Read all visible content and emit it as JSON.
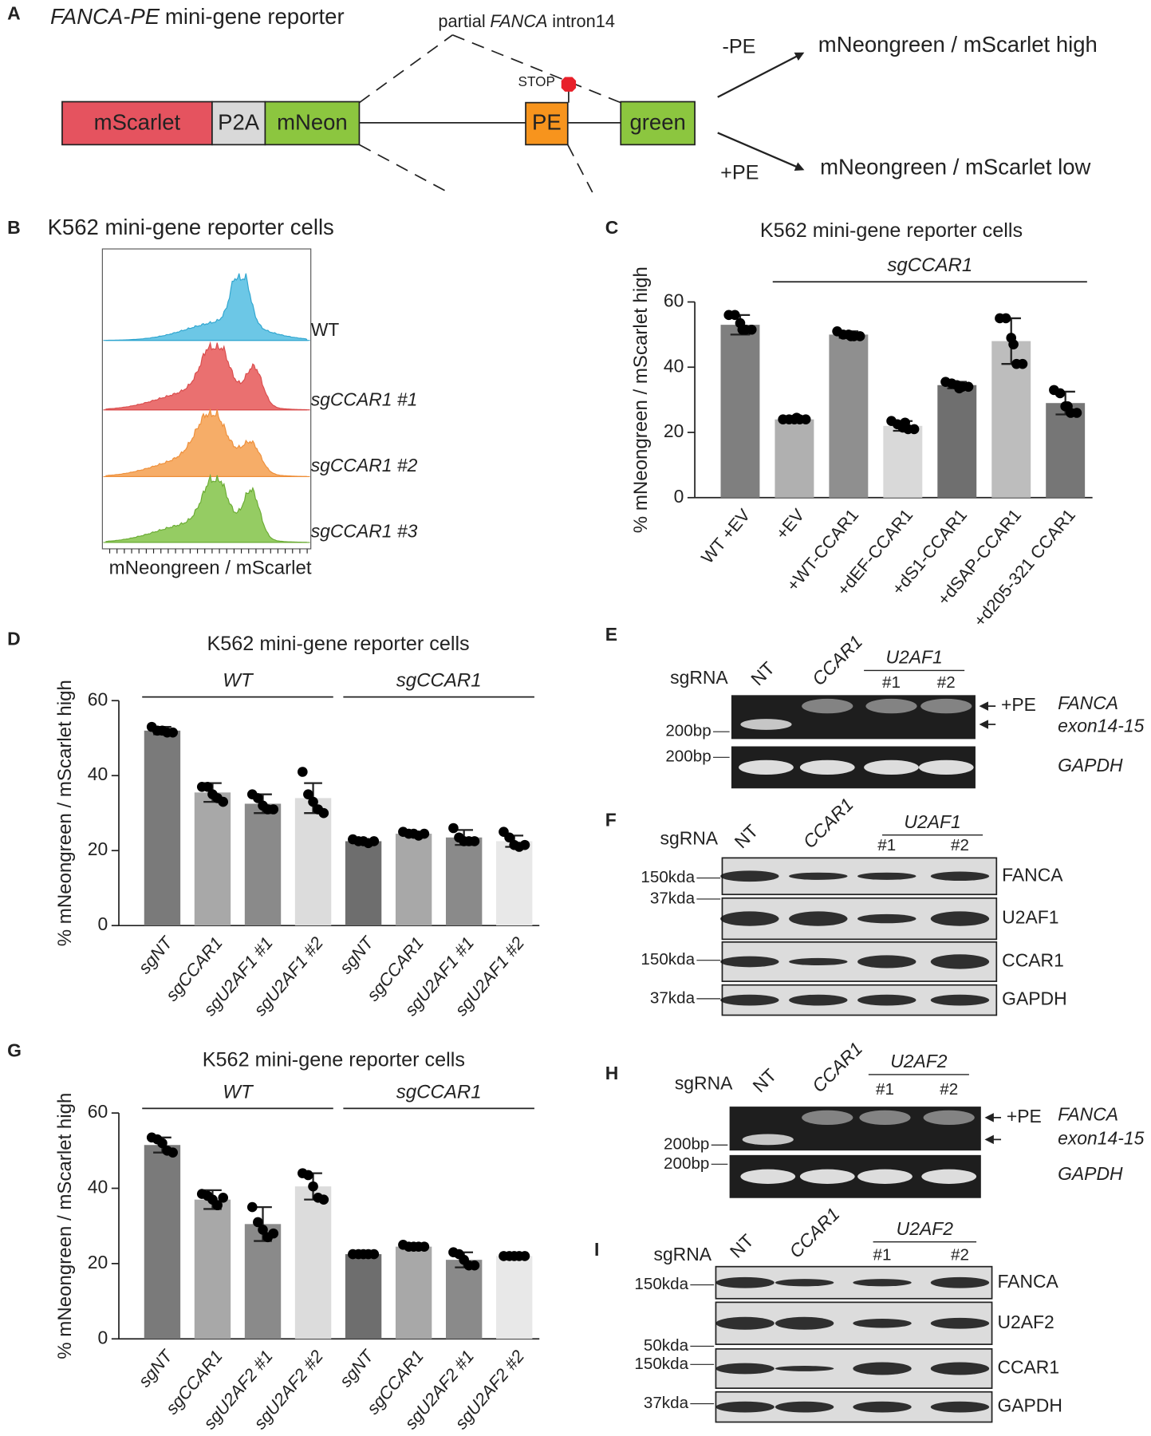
{
  "panel_a": {
    "letter": "A",
    "title_gene": "FANCA-PE",
    "title": "mini-gene reporter",
    "intron_prefix": "partial",
    "intron_gene": "FANCA",
    "intron_suffix": "intron14",
    "boxes": [
      "mScarlet",
      "P2A",
      "mNeon",
      "PE",
      "green"
    ],
    "stop": "STOP",
    "outcomes": [
      {
        "condition": "-PE",
        "result": "mNeongreen / mScarlet high"
      },
      {
        "condition": "+PE",
        "result": "mNeongreen / mScarlet low"
      }
    ]
  },
  "panel_b": {
    "letter": "B",
    "title": "K562 mini-gene reporter cells",
    "samples": [
      "WT",
      "sgCCAR1 #1",
      "sgCCAR1 #2",
      "sgCCAR1 #3"
    ],
    "x_label": "mNeongreen / mScarlet"
  },
  "chart_data": [
    {
      "type": "bar",
      "panel": "C",
      "title": "K562 mini-gene reporter cells",
      "y_label": "% mNeongreen / mScarlet high",
      "categories": [
        "WT +EV",
        "+EV",
        "+WT-CCAR1",
        "+dEF-CCAR1",
        "+dS1-CCAR1",
        "+dSAP-CCAR1",
        "+d205-321 CCAR1"
      ],
      "values": [
        53,
        24,
        50,
        22,
        34.5,
        48,
        29
      ],
      "errors": [
        3,
        0.5,
        1,
        1.5,
        1,
        7,
        3.5
      ],
      "points": [
        [
          56,
          56,
          53.5,
          51.5,
          51.5,
          51.5
        ],
        [
          24,
          24,
          24,
          24,
          24,
          24.5
        ],
        [
          51,
          50,
          50,
          49.5,
          49.5,
          49.5
        ],
        [
          23.5,
          22.5,
          21.5,
          21,
          21,
          23
        ],
        [
          35.5,
          35,
          34.5,
          34,
          34,
          33.5
        ],
        [
          55,
          55,
          49,
          41,
          41,
          47
        ],
        [
          33,
          32,
          28,
          26,
          26,
          28
        ]
      ],
      "colors": [
        "#7f7f7f",
        "#b0b0b0",
        "#8f8f8f",
        "#d9d9d9",
        "#6f6f6f",
        "#bdbdbd",
        "#767676"
      ],
      "groups": [
        {
          "label": "sgCCAR1",
          "first": 1,
          "last": 6
        }
      ],
      "ylim": [
        0,
        60
      ],
      "yticks": [
        0,
        20,
        40,
        60
      ]
    },
    {
      "type": "bar",
      "panel": "D",
      "title": "K562 mini-gene reporter cells",
      "y_label": "% mNeongreen / mScarlet high",
      "categories": [
        "sgNT",
        "sgCCAR1",
        "sgU2AF1 #1",
        "sgU2AF1 #2",
        "sgNT",
        "sgCCAR1",
        "sgU2AF1 #1",
        "sgU2AF1 #2"
      ],
      "values": [
        52,
        35.5,
        32.5,
        34,
        22.5,
        24.5,
        23.5,
        22.5
      ],
      "errors": [
        1,
        2.5,
        2.5,
        4,
        0.5,
        0.5,
        2,
        1.5
      ],
      "points": [
        [
          53,
          52,
          52,
          51.5,
          51.5
        ],
        [
          37,
          37,
          35,
          34,
          33
        ],
        [
          35,
          34,
          32,
          31,
          31
        ],
        [
          41,
          35,
          33,
          31,
          30
        ],
        [
          23,
          22.5,
          22.5,
          22,
          22.5
        ],
        [
          25,
          24.5,
          24.5,
          24,
          24.5
        ],
        [
          26,
          23.5,
          22.5,
          22.5,
          22.5
        ],
        [
          25,
          23.5,
          21.5,
          21,
          21.5
        ]
      ],
      "colors": [
        "#7a7a7a",
        "#a8a8a8",
        "#8a8a8a",
        "#dcdcdc",
        "#6e6e6e",
        "#a8a8a8",
        "#8a8a8a",
        "#e8e8e8"
      ],
      "groups": [
        {
          "label": "WT",
          "first": 0,
          "last": 3
        },
        {
          "label": "sgCCAR1",
          "first": 4,
          "last": 7
        }
      ],
      "ylim": [
        0,
        60
      ],
      "yticks": [
        0,
        20,
        40,
        60
      ]
    },
    {
      "type": "bar",
      "panel": "G",
      "title": "K562 mini-gene reporter cells",
      "y_label": "% mNeongreen / mScarlet high",
      "categories": [
        "sgNT",
        "sgCCAR1",
        "sgU2AF2 #1",
        "sgU2AF2 #2",
        "sgNT",
        "sgCCAR1",
        "sgU2AF2 #1",
        "sgU2AF2 #2"
      ],
      "values": [
        51.5,
        37,
        30.5,
        40.5,
        22.5,
        24.5,
        21,
        22
      ],
      "errors": [
        2,
        2.5,
        4.5,
        3.5,
        0.3,
        0.5,
        2,
        0.3
      ],
      "points": [
        [
          53.5,
          53,
          52,
          50,
          49.5
        ],
        [
          38.5,
          38,
          37,
          35.5,
          37.5
        ],
        [
          35,
          31,
          29,
          27,
          28
        ],
        [
          44,
          43.5,
          40.5,
          37.5,
          37
        ],
        [
          22.5,
          22.5,
          22.5,
          22.5,
          22.5
        ],
        [
          25,
          24.5,
          24.5,
          24.5,
          24.5
        ],
        [
          23,
          22.5,
          21,
          19.5,
          19.5
        ],
        [
          22,
          22,
          22,
          22,
          22
        ]
      ],
      "colors": [
        "#7a7a7a",
        "#a8a8a8",
        "#8a8a8a",
        "#dcdcdc",
        "#6e6e6e",
        "#a8a8a8",
        "#8a8a8a",
        "#e8e8e8"
      ],
      "groups": [
        {
          "label": "WT",
          "first": 0,
          "last": 3
        },
        {
          "label": "sgCCAR1",
          "first": 4,
          "last": 7
        }
      ],
      "ylim": [
        0,
        60
      ],
      "yticks": [
        0,
        20,
        40,
        60
      ]
    }
  ],
  "panel_e": {
    "letter": "E",
    "row_label": "sgRNA",
    "lanes": [
      "NT",
      "CCAR1",
      "#1",
      "#2"
    ],
    "lane_group": "U2AF1",
    "band_label": "+PE",
    "markers": [
      "200bp",
      "200bp"
    ],
    "target": "FANCA",
    "target_region": "exon14-15",
    "control": "GAPDH"
  },
  "panel_f": {
    "letter": "F",
    "row_label": "sgRNA",
    "lanes": [
      "NT",
      "CCAR1",
      "#1",
      "#2"
    ],
    "lane_group": "U2AF1",
    "markers": [
      "150kda",
      "37kda",
      "150kda",
      "37kda"
    ],
    "proteins": [
      "FANCA",
      "U2AF1",
      "CCAR1",
      "GAPDH"
    ]
  },
  "panel_h": {
    "letter": "H",
    "row_label": "sgRNA",
    "lanes": [
      "NT",
      "CCAR1",
      "#1",
      "#2"
    ],
    "lane_group": "U2AF2",
    "band_label": "+PE",
    "markers": [
      "200bp",
      "200bp"
    ],
    "target": "FANCA",
    "target_region": "exon14-15",
    "control": "GAPDH"
  },
  "panel_i": {
    "letter": "I",
    "row_label": "sgRNA",
    "lanes": [
      "NT",
      "CCAR1",
      "#1",
      "#2"
    ],
    "lane_group": "U2AF2",
    "markers": [
      "150kda",
      "50kda",
      "150kda",
      "37kda"
    ],
    "proteins": [
      "FANCA",
      "U2AF2",
      "CCAR1",
      "GAPDH"
    ]
  }
}
